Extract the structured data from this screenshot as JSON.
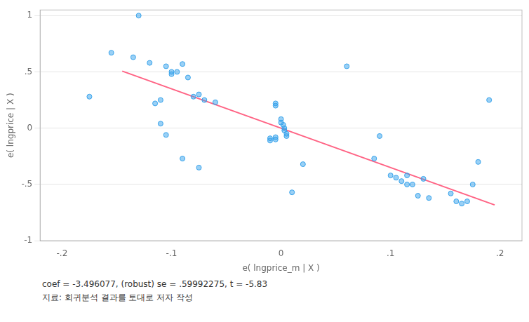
{
  "chart_data": {
    "type": "scatter",
    "xlabel": "e( lngprice_m | X )",
    "ylabel": "e( lngprice | X )",
    "annotations": [
      "coef = -3.496077, (robust) se = .59992275, t = -5.83",
      "지료:  회귀분석 결과를 토대로 저자 작성"
    ],
    "series": [
      {
        "type": "scatter",
        "x": [
          -0.13,
          -0.155,
          -0.135,
          -0.12,
          -0.105,
          -0.09,
          -0.175,
          -0.115,
          -0.11,
          -0.1,
          -0.1,
          -0.095,
          -0.085,
          -0.08,
          -0.075,
          -0.07,
          -0.06,
          -0.11,
          -0.105,
          -0.09,
          -0.075,
          -0.005,
          -0.005,
          0.0,
          0.0,
          0.002,
          0.003,
          0.003,
          0.005,
          0.005,
          -0.005,
          -0.01,
          -0.005,
          -0.01,
          0.01,
          0.02,
          0.06,
          0.09,
          0.1,
          0.105,
          0.11,
          0.115,
          0.115,
          0.12,
          0.125,
          0.13,
          0.135,
          0.085,
          0.155,
          0.16,
          0.165,
          0.17,
          0.175,
          0.18,
          0.19
        ],
        "values": [
          1.0,
          0.67,
          0.63,
          0.58,
          0.55,
          0.57,
          0.28,
          0.22,
          0.25,
          0.5,
          0.48,
          0.5,
          0.45,
          0.28,
          0.3,
          0.25,
          0.23,
          0.04,
          -0.06,
          -0.27,
          -0.35,
          0.22,
          0.2,
          0.08,
          0.05,
          0.03,
          0.0,
          -0.02,
          -0.05,
          -0.07,
          -0.08,
          -0.09,
          -0.1,
          -0.11,
          -0.57,
          -0.32,
          0.55,
          -0.07,
          -0.42,
          -0.44,
          -0.47,
          -0.5,
          -0.42,
          -0.5,
          -0.6,
          -0.45,
          -0.62,
          -0.27,
          -0.58,
          -0.65,
          -0.67,
          -0.65,
          -0.5,
          -0.3,
          0.25
        ]
      },
      {
        "type": "line",
        "x": [
          -0.145,
          0.195
        ],
        "values": [
          0.506931165,
          -0.681735015
        ]
      }
    ],
    "xlim": [
      -0.22,
      0.22
    ],
    "ylim": [
      -1.0,
      1.05
    ],
    "xticks": [
      {
        "value": -0.2,
        "label": "-.2"
      },
      {
        "value": -0.1,
        "label": "-.1"
      },
      0,
      {
        "value": 0.1,
        "label": ".1"
      },
      {
        "value": 0.2,
        "label": ".2"
      }
    ],
    "yticks": [
      -1,
      {
        "value": -0.5,
        "label": "-.5"
      },
      0,
      {
        "value": 0.5,
        "label": ".5"
      },
      1
    ],
    "grid": "y"
  }
}
